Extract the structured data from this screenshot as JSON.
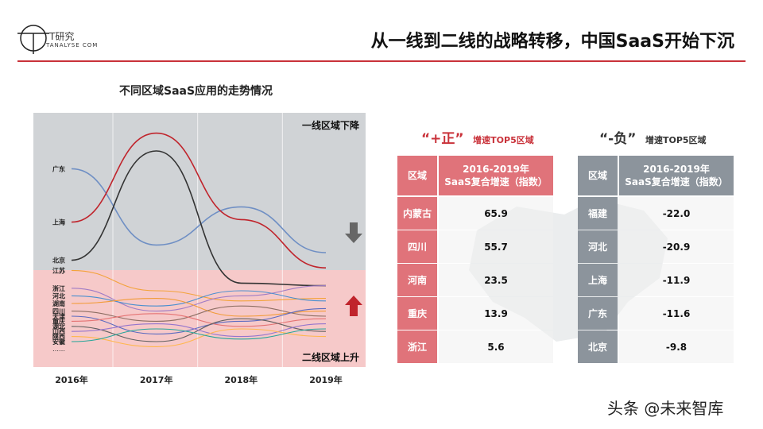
{
  "header": {
    "logo_cn": "T研究",
    "logo_en": "TANALYSE COM",
    "title": "从一线到二线的战略转移，中国SaaS开始下沉"
  },
  "chart_title": "不同区域SaaS应用的走势情况",
  "chart_data": {
    "type": "line",
    "categories": [
      "2016年",
      "2017年",
      "2018年",
      "2019年"
    ],
    "annotations": {
      "top_region": "一线区域下降",
      "bottom_region": "二线区域上升"
    },
    "series": [
      {
        "name": "广东",
        "values": [
          78,
          48,
          63,
          45
        ]
      },
      {
        "name": "上海",
        "values": [
          57,
          92,
          58,
          39
        ]
      },
      {
        "name": "北京",
        "values": [
          42,
          85,
          33,
          32
        ]
      },
      {
        "name": "江苏",
        "values": [
          38,
          30,
          26,
          27
        ]
      },
      {
        "name": "浙江",
        "values": [
          31,
          22,
          28,
          32
        ]
      },
      {
        "name": "河北",
        "values": [
          28,
          24,
          30,
          26
        ]
      },
      {
        "name": "湖南",
        "values": [
          25,
          27,
          20,
          22
        ]
      },
      {
        "name": "四川",
        "values": [
          22,
          18,
          24,
          20
        ]
      },
      {
        "name": "天津",
        "values": [
          20,
          13,
          18,
          23
        ]
      },
      {
        "name": "重庆",
        "values": [
          18,
          21,
          16,
          19
        ]
      },
      {
        "name": "湖北",
        "values": [
          16,
          10,
          19,
          14
        ]
      },
      {
        "name": "山西",
        "values": [
          14,
          17,
          12,
          17
        ]
      },
      {
        "name": "陕西",
        "values": [
          12,
          8,
          15,
          12
        ]
      },
      {
        "name": "安徽",
        "values": [
          10,
          15,
          11,
          15
        ]
      }
    ],
    "extra_label": "……"
  },
  "colors": {
    "accent": "#c9323a",
    "upper_band": "#d0d3d6",
    "lower_band": "#f6c9c9",
    "pos_header": "#e0737a",
    "neg_header": "#8c949c"
  },
  "tables": {
    "positive": {
      "title_big": "“+正”",
      "title_small": "增速TOP5区域",
      "col_region": "区域",
      "col_value": "2016-2019年\nSaaS复合增速（指数）",
      "rows": [
        {
          "region": "内蒙古",
          "value": "65.9"
        },
        {
          "region": "四川",
          "value": "55.7"
        },
        {
          "region": "河南",
          "value": "23.5"
        },
        {
          "region": "重庆",
          "value": "13.9"
        },
        {
          "region": "浙江",
          "value": "5.6"
        }
      ]
    },
    "negative": {
      "title_big": "“-负”",
      "title_small": "增速TOP5区域",
      "col_region": "区域",
      "col_value": "2016-2019年\nSaaS复合增速（指数）",
      "rows": [
        {
          "region": "福建",
          "value": "-22.0"
        },
        {
          "region": "河北",
          "value": "-20.9"
        },
        {
          "region": "上海",
          "value": "-11.9"
        },
        {
          "region": "广东",
          "value": "-11.6"
        },
        {
          "region": "北京",
          "value": "-9.8"
        }
      ]
    }
  },
  "watermark": "头条 @未来智库"
}
